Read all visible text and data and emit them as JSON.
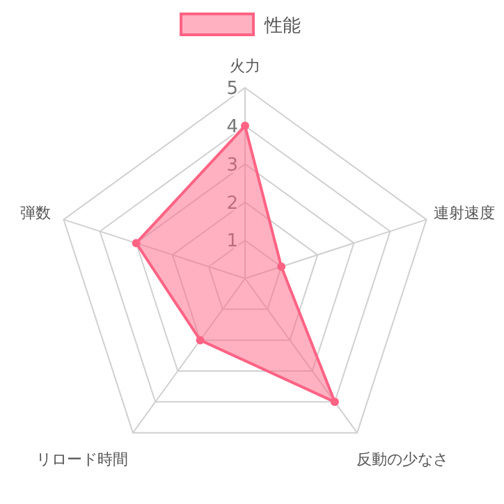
{
  "chart_data": {
    "type": "radar",
    "categories": [
      "火力",
      "連射速度",
      "反動の少なさ",
      "リロード時間",
      "弾数"
    ],
    "series": [
      {
        "name": "性能",
        "color": "#ff6384",
        "values": [
          4,
          1,
          4,
          2,
          3
        ]
      }
    ],
    "ylim": [
      0,
      5
    ],
    "yticks": [
      1,
      2,
      3,
      4,
      5
    ],
    "grid": true,
    "legend": "top",
    "marker": "circle"
  }
}
